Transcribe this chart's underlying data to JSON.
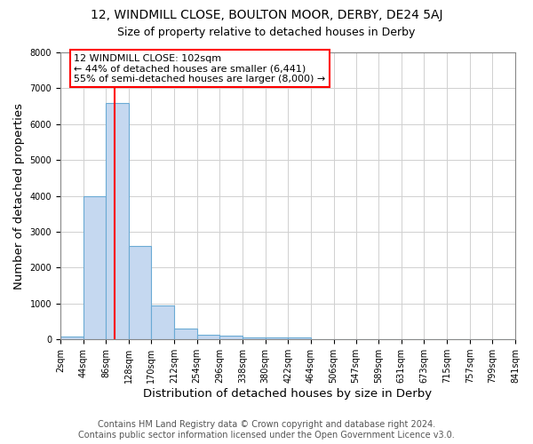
{
  "title": "12, WINDMILL CLOSE, BOULTON MOOR, DERBY, DE24 5AJ",
  "subtitle": "Size of property relative to detached houses in Derby",
  "xlabel": "Distribution of detached houses by size in Derby",
  "ylabel": "Number of detached properties",
  "footer_line1": "Contains HM Land Registry data © Crown copyright and database right 2024.",
  "footer_line2": "Contains public sector information licensed under the Open Government Licence v3.0.",
  "annotation_line1": "12 WINDMILL CLOSE: 102sqm",
  "annotation_line2": "← 44% of detached houses are smaller (6,441)",
  "annotation_line3": "55% of semi-detached houses are larger (8,000) →",
  "bin_edges": [
    2,
    44,
    86,
    128,
    170,
    212,
    254,
    296,
    338,
    380,
    422,
    464,
    506,
    547,
    589,
    631,
    673,
    715,
    757,
    799,
    841
  ],
  "bin_heights": [
    75,
    4000,
    6600,
    2600,
    950,
    300,
    120,
    100,
    60,
    60,
    60,
    10,
    5,
    3,
    2,
    2,
    1,
    1,
    1,
    1
  ],
  "bar_color": "#c5d8f0",
  "bar_edge_color": "#6aaad4",
  "red_line_x": 102,
  "ylim": [
    0,
    8000
  ],
  "yticks": [
    0,
    1000,
    2000,
    3000,
    4000,
    5000,
    6000,
    7000,
    8000
  ],
  "background_color": "#ffffff",
  "grid_color": "#d0d0d0",
  "title_fontsize": 10,
  "subtitle_fontsize": 9,
  "axis_label_fontsize": 9.5,
  "tick_fontsize": 7,
  "annotation_fontsize": 8,
  "footer_fontsize": 7
}
